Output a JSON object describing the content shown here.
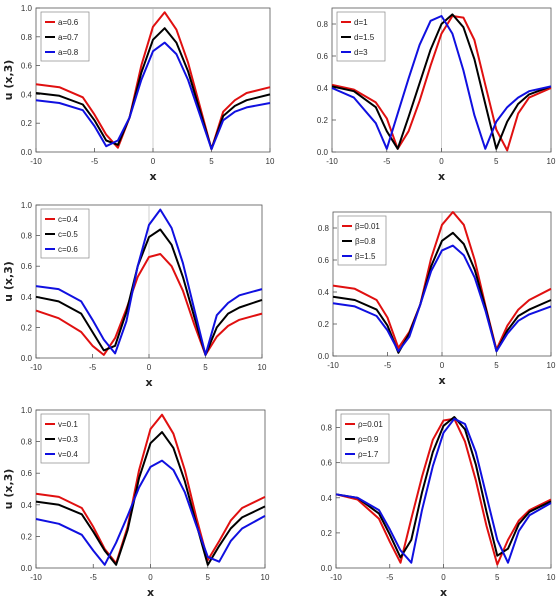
{
  "chart_data": [
    {
      "type": "line",
      "panel": "top-left",
      "xlabel": "x",
      "ylabel": "u (x,3)",
      "xlim": [
        -10,
        10
      ],
      "ylim": [
        0,
        1.0
      ],
      "xticks": [
        "-10",
        "-5",
        "0",
        "5",
        "10"
      ],
      "yticks": [
        "0.0",
        "0.2",
        "0.4",
        "0.6",
        "0.8",
        "1.0"
      ],
      "legend_position": "top-left",
      "x": [
        -10,
        -8,
        -6,
        -5,
        -4,
        -3,
        -2,
        -1,
        0,
        1,
        2,
        3,
        4,
        5,
        6,
        7,
        8,
        10
      ],
      "series": [
        {
          "name": "a=0.6",
          "color": "#e01010",
          "values": [
            0.47,
            0.45,
            0.38,
            0.26,
            0.12,
            0.03,
            0.24,
            0.6,
            0.87,
            0.97,
            0.85,
            0.62,
            0.32,
            0.02,
            0.28,
            0.36,
            0.41,
            0.45
          ]
        },
        {
          "name": "a=0.7",
          "color": "#000000",
          "values": [
            0.41,
            0.39,
            0.33,
            0.22,
            0.08,
            0.05,
            0.24,
            0.55,
            0.78,
            0.86,
            0.76,
            0.56,
            0.29,
            0.02,
            0.25,
            0.32,
            0.36,
            0.4
          ]
        },
        {
          "name": "a=0.8",
          "color": "#1010e0",
          "values": [
            0.36,
            0.34,
            0.29,
            0.18,
            0.04,
            0.08,
            0.24,
            0.5,
            0.7,
            0.76,
            0.68,
            0.5,
            0.26,
            0.02,
            0.22,
            0.28,
            0.31,
            0.34
          ]
        }
      ]
    },
    {
      "type": "line",
      "panel": "top-right",
      "xlabel": "x",
      "ylabel": "",
      "xlim": [
        -10,
        10
      ],
      "ylim": [
        0,
        0.9
      ],
      "xticks": [
        "-10",
        "-5",
        "0",
        "5",
        "10"
      ],
      "yticks": [
        "0.0",
        "0.2",
        "0.4",
        "0.6",
        "0.8"
      ],
      "legend_position": "top-left",
      "x": [
        -10,
        -8,
        -6,
        -5,
        -4,
        -3,
        -2,
        -1,
        0,
        1,
        2,
        3,
        4,
        5,
        6,
        7,
        8,
        10
      ],
      "series": [
        {
          "name": "d=1",
          "color": "#e01010",
          "values": [
            0.42,
            0.39,
            0.31,
            0.21,
            0.02,
            0.13,
            0.32,
            0.54,
            0.74,
            0.85,
            0.84,
            0.7,
            0.42,
            0.14,
            0.01,
            0.24,
            0.34,
            0.4
          ]
        },
        {
          "name": "d=1.5",
          "color": "#000000",
          "values": [
            0.41,
            0.38,
            0.28,
            0.13,
            0.02,
            0.22,
            0.43,
            0.64,
            0.8,
            0.86,
            0.78,
            0.58,
            0.3,
            0.02,
            0.19,
            0.3,
            0.36,
            0.41
          ]
        },
        {
          "name": "d=3",
          "color": "#1010e0",
          "values": [
            0.4,
            0.34,
            0.18,
            0.02,
            0.24,
            0.46,
            0.67,
            0.82,
            0.85,
            0.74,
            0.51,
            0.23,
            0.02,
            0.19,
            0.28,
            0.34,
            0.38,
            0.41
          ]
        }
      ]
    },
    {
      "type": "line",
      "panel": "middle-left",
      "xlabel": "x",
      "ylabel": "u (x,3)",
      "xlim": [
        -10,
        10
      ],
      "ylim": [
        0,
        1.0
      ],
      "xticks": [
        "-10",
        "-5",
        "0",
        "5",
        "10"
      ],
      "yticks": [
        "0.0",
        "0.2",
        "0.4",
        "0.6",
        "0.8",
        "1.0"
      ],
      "legend_position": "top-left",
      "x": [
        -10,
        -8,
        -6,
        -5,
        -4,
        -3,
        -2,
        -1,
        0,
        1,
        2,
        3,
        4,
        5,
        6,
        7,
        8,
        10
      ],
      "series": [
        {
          "name": "c=0.4",
          "color": "#e01010",
          "values": [
            0.31,
            0.26,
            0.17,
            0.08,
            0.02,
            0.13,
            0.32,
            0.53,
            0.66,
            0.68,
            0.6,
            0.44,
            0.22,
            0.02,
            0.14,
            0.21,
            0.25,
            0.29
          ]
        },
        {
          "name": "c=0.5",
          "color": "#000000",
          "values": [
            0.4,
            0.37,
            0.29,
            0.17,
            0.05,
            0.08,
            0.3,
            0.6,
            0.79,
            0.84,
            0.74,
            0.53,
            0.27,
            0.02,
            0.2,
            0.29,
            0.33,
            0.38
          ]
        },
        {
          "name": "c=0.6",
          "color": "#1010e0",
          "values": [
            0.47,
            0.45,
            0.37,
            0.25,
            0.12,
            0.03,
            0.24,
            0.6,
            0.87,
            0.97,
            0.85,
            0.62,
            0.32,
            0.02,
            0.28,
            0.36,
            0.41,
            0.45
          ]
        }
      ]
    },
    {
      "type": "line",
      "panel": "middle-right",
      "xlabel": "x",
      "ylabel": "",
      "xlim": [
        -10,
        10
      ],
      "ylim": [
        0,
        0.9
      ],
      "xticks": [
        "-10",
        "-5",
        "0",
        "5",
        "10"
      ],
      "yticks": [
        "0.0",
        "0.2",
        "0.4",
        "0.6",
        "0.8"
      ],
      "legend_position": "top-left",
      "x": [
        -10,
        -8,
        -6,
        -5,
        -4,
        -3,
        -2,
        -1,
        0,
        1,
        2,
        3,
        4,
        5,
        6,
        7,
        8,
        10
      ],
      "series": [
        {
          "name": "β=0.01",
          "color": "#e01010",
          "values": [
            0.44,
            0.42,
            0.35,
            0.24,
            0.05,
            0.15,
            0.32,
            0.61,
            0.82,
            0.9,
            0.82,
            0.6,
            0.31,
            0.04,
            0.19,
            0.29,
            0.35,
            0.42
          ]
        },
        {
          "name": "β=0.8",
          "color": "#000000",
          "values": [
            0.37,
            0.35,
            0.29,
            0.19,
            0.02,
            0.14,
            0.32,
            0.56,
            0.72,
            0.77,
            0.7,
            0.54,
            0.3,
            0.03,
            0.16,
            0.25,
            0.29,
            0.35
          ]
        },
        {
          "name": "β=1.5",
          "color": "#1010e0",
          "values": [
            0.33,
            0.31,
            0.25,
            0.16,
            0.03,
            0.12,
            0.32,
            0.53,
            0.66,
            0.69,
            0.63,
            0.49,
            0.28,
            0.03,
            0.14,
            0.22,
            0.26,
            0.31
          ]
        }
      ]
    },
    {
      "type": "line",
      "panel": "bottom-left",
      "xlabel": "x",
      "ylabel": "u (x,3)",
      "xlim": [
        -10,
        10
      ],
      "ylim": [
        0,
        1.0
      ],
      "xticks": [
        "-10",
        "-5",
        "0",
        "5",
        "10"
      ],
      "yticks": [
        "0.0",
        "0.2",
        "0.4",
        "0.6",
        "0.8",
        "1.0"
      ],
      "legend_position": "top-left",
      "x": [
        -10,
        -8,
        -6,
        -5,
        -4,
        -3,
        -2,
        -1,
        0,
        1,
        2,
        3,
        4,
        5,
        6,
        7,
        8,
        10
      ],
      "series": [
        {
          "name": "v=0.1",
          "color": "#e01010",
          "values": [
            0.47,
            0.45,
            0.38,
            0.26,
            0.12,
            0.03,
            0.26,
            0.62,
            0.88,
            0.97,
            0.85,
            0.62,
            0.32,
            0.05,
            0.17,
            0.3,
            0.38,
            0.45
          ]
        },
        {
          "name": "v=0.3",
          "color": "#000000",
          "values": [
            0.42,
            0.4,
            0.34,
            0.23,
            0.11,
            0.02,
            0.24,
            0.57,
            0.79,
            0.86,
            0.76,
            0.55,
            0.28,
            0.02,
            0.14,
            0.25,
            0.32,
            0.39
          ]
        },
        {
          "name": "v=0.4",
          "color": "#1010e0",
          "values": [
            0.31,
            0.28,
            0.21,
            0.11,
            0.02,
            0.16,
            0.33,
            0.51,
            0.64,
            0.68,
            0.62,
            0.48,
            0.27,
            0.07,
            0.04,
            0.17,
            0.25,
            0.33
          ]
        }
      ]
    },
    {
      "type": "line",
      "panel": "bottom-right",
      "xlabel": "x",
      "ylabel": "",
      "xlim": [
        -10,
        10
      ],
      "ylim": [
        0,
        0.9
      ],
      "xticks": [
        "-10",
        "-5",
        "0",
        "5",
        "10"
      ],
      "yticks": [
        "0.0",
        "0.2",
        "0.4",
        "0.6",
        "0.8"
      ],
      "legend_position": "top-left",
      "x": [
        -10,
        -8,
        -6,
        -5,
        -4,
        -3,
        -2,
        -1,
        0,
        1,
        2,
        3,
        4,
        5,
        6,
        7,
        8,
        10
      ],
      "series": [
        {
          "name": "ρ=0.01",
          "color": "#e01010",
          "values": [
            0.42,
            0.39,
            0.28,
            0.15,
            0.03,
            0.28,
            0.52,
            0.73,
            0.84,
            0.85,
            0.72,
            0.5,
            0.24,
            0.02,
            0.16,
            0.27,
            0.33,
            0.39
          ]
        },
        {
          "name": "ρ=0.9",
          "color": "#000000",
          "values": [
            0.42,
            0.4,
            0.31,
            0.19,
            0.06,
            0.16,
            0.43,
            0.66,
            0.81,
            0.86,
            0.79,
            0.59,
            0.32,
            0.07,
            0.11,
            0.25,
            0.32,
            0.38
          ]
        },
        {
          "name": "ρ=1.7",
          "color": "#1010e0",
          "values": [
            0.42,
            0.4,
            0.33,
            0.22,
            0.1,
            0.03,
            0.33,
            0.58,
            0.77,
            0.85,
            0.82,
            0.66,
            0.41,
            0.16,
            0.03,
            0.21,
            0.3,
            0.37
          ]
        }
      ]
    }
  ]
}
